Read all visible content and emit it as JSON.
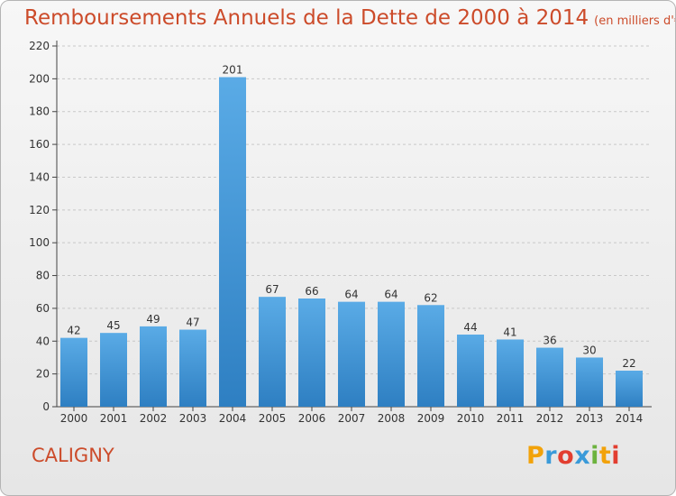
{
  "title": "Remboursements Annuels de la Dette de 2000 à 2014",
  "unit_note": "(en milliers d'€)",
  "commune": "CALIGNY",
  "logo": {
    "letters": [
      "P",
      "r",
      "o",
      "x",
      "i",
      "t",
      "i"
    ],
    "colors": [
      "#f2a20a",
      "#3a9ad9",
      "#e23e30",
      "#3a9ad9",
      "#6cb33e",
      "#f2a20a",
      "#e23e30"
    ]
  },
  "colors": {
    "bar_top": "#5aabe6",
    "bar_bottom": "#2e7fc2",
    "title": "#cc4b2a"
  },
  "chart_data": {
    "type": "bar",
    "title": "Remboursements Annuels de la Dette de 2000 à 2014",
    "categories": [
      "2000",
      "2001",
      "2002",
      "2003",
      "2004",
      "2005",
      "2006",
      "2007",
      "2008",
      "2009",
      "2010",
      "2011",
      "2012",
      "2013",
      "2014"
    ],
    "values": [
      42,
      45,
      49,
      47,
      201,
      67,
      66,
      64,
      64,
      62,
      44,
      41,
      36,
      30,
      22
    ],
    "ylim": [
      0,
      220
    ],
    "yticks": [
      0,
      20,
      40,
      60,
      80,
      100,
      120,
      140,
      160,
      180,
      200,
      220
    ],
    "grid": true,
    "xlabel": "",
    "ylabel": ""
  }
}
